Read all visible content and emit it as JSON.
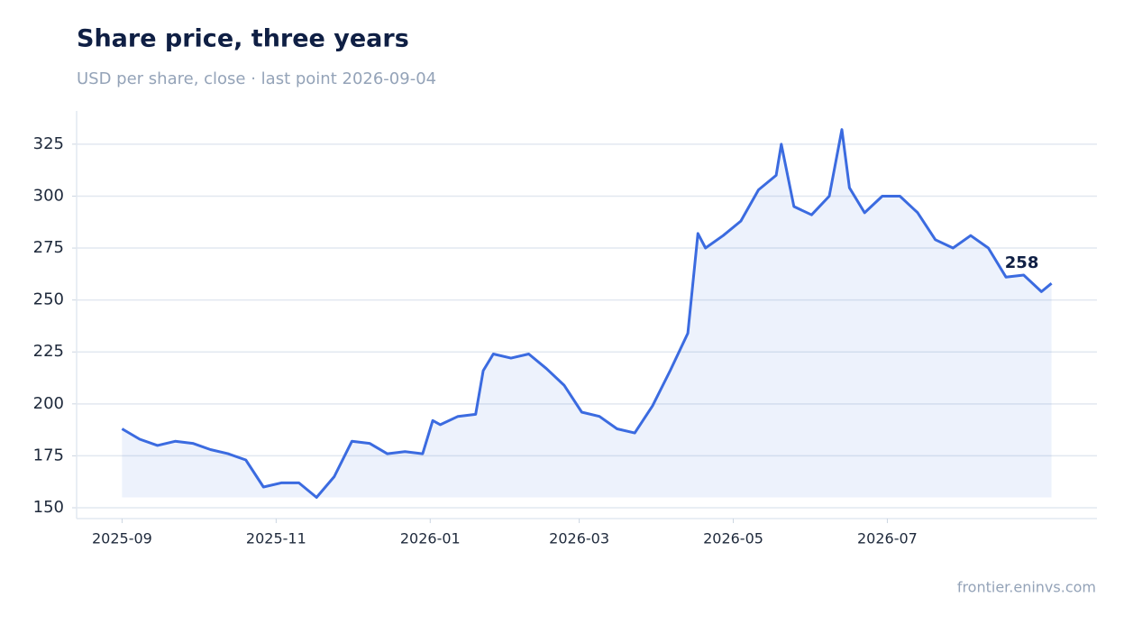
{
  "chart_data": {
    "type": "line",
    "title": "Share price, three years",
    "subtitle": "USD per share, close · last point 2026-09-04",
    "source": "frontier.eninvs.com",
    "x": [
      "2025-09-01",
      "2025-09-08",
      "2025-09-15",
      "2025-09-22",
      "2025-09-29",
      "2025-10-06",
      "2025-10-13",
      "2025-10-20",
      "2025-10-27",
      "2025-11-03",
      "2025-11-10",
      "2025-11-17",
      "2025-11-24",
      "2025-12-01",
      "2025-12-08",
      "2025-12-15",
      "2025-12-22",
      "2025-12-29",
      "2026-01-02",
      "2026-01-05",
      "2026-01-12",
      "2026-01-19",
      "2026-01-22",
      "2026-01-26",
      "2026-02-02",
      "2026-02-09",
      "2026-02-16",
      "2026-02-23",
      "2026-03-02",
      "2026-03-09",
      "2026-03-16",
      "2026-03-23",
      "2026-03-30",
      "2026-04-06",
      "2026-04-13",
      "2026-04-17",
      "2026-04-20",
      "2026-04-27",
      "2026-05-04",
      "2026-05-11",
      "2026-05-18",
      "2026-05-20",
      "2026-05-25",
      "2026-06-01",
      "2026-06-08",
      "2026-06-13",
      "2026-06-16",
      "2026-06-22",
      "2026-06-29",
      "2026-07-06",
      "2026-07-13",
      "2026-07-20",
      "2026-07-27",
      "2026-08-03",
      "2026-08-10",
      "2026-08-17",
      "2026-08-24",
      "2026-08-31",
      "2026-09-04"
    ],
    "series": [
      {
        "name": "Close",
        "color": "#3b6be0",
        "values": [
          188,
          183,
          180,
          182,
          181,
          178,
          176,
          173,
          160,
          162,
          162,
          155,
          165,
          182,
          181,
          176,
          177,
          176,
          192,
          190,
          194,
          195,
          216,
          224,
          222,
          224,
          217,
          209,
          196,
          194,
          188,
          186,
          199,
          216,
          234,
          282,
          275,
          281,
          288,
          303,
          310,
          325,
          295,
          291,
          300,
          332,
          304,
          292,
          300,
          300,
          292,
          279,
          275,
          281,
          275,
          261,
          262,
          254,
          258
        ]
      }
    ],
    "ylim": [
      144.8,
      341
    ],
    "yticks": [
      150,
      175,
      200,
      225,
      250,
      275,
      300,
      325
    ],
    "xlim": [
      "2025-08-14",
      "2026-09-22"
    ],
    "xticks": [
      {
        "value": "2025-09-01",
        "label": "2025-09"
      },
      {
        "value": "2025-11-01",
        "label": "2025-11"
      },
      {
        "value": "2026-01-01",
        "label": "2026-01"
      },
      {
        "value": "2026-03-01",
        "label": "2026-03"
      },
      {
        "value": "2026-05-01",
        "label": "2026-05"
      },
      {
        "value": "2026-07-01",
        "label": "2026-07"
      }
    ],
    "grid": true
  }
}
